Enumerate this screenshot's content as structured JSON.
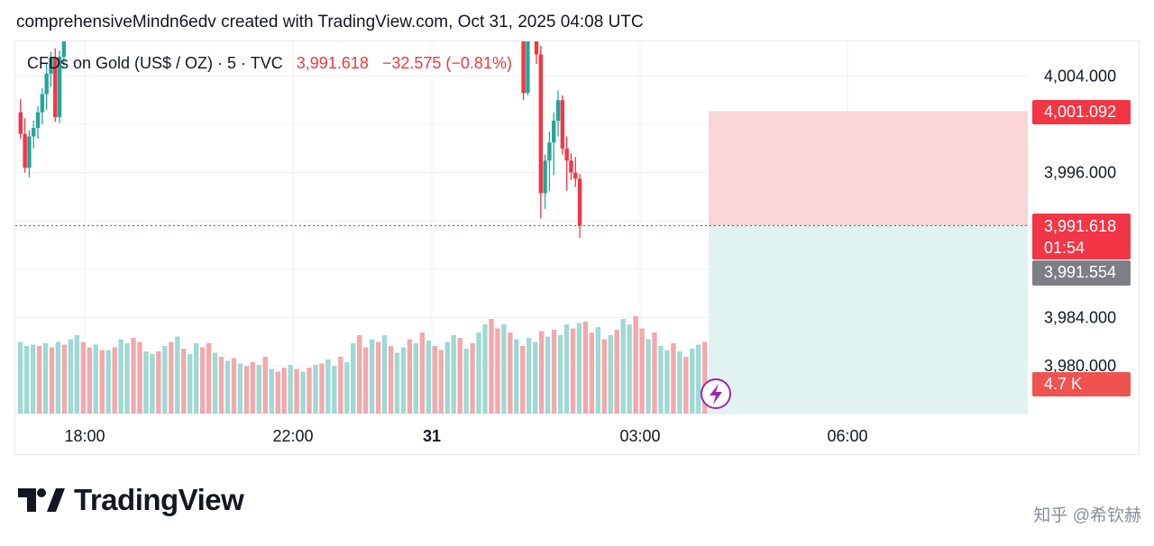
{
  "header": {
    "created_text": "comprehensiveMindn6edv created with TradingView.com, Oct 31, 2025 04:08 UTC"
  },
  "legend": {
    "symbol": "CFDs on Gold (US$ / OZ) · 5 · TVC",
    "last": "3,991.618",
    "change": "−32.575 (−0.81%)"
  },
  "brand": {
    "name": "TradingView",
    "icon": "tradingview-logo-icon"
  },
  "watermark": "知乎 @希钦赫",
  "colors": {
    "up": "#26a69a",
    "down": "#f23645",
    "up_volume": "#9ed9d3",
    "down_volume": "#f2a8ad",
    "stop_zone": "#f9d5d8",
    "target_zone": "#e0f3f1",
    "grid": "#eef0f3",
    "price_line": "#9b3a45"
  },
  "chart_data": {
    "type": "candlestick",
    "title": "CFDs on Gold (US$ / OZ) · 5 · TVC",
    "timeframe": "5",
    "ylim": [
      3976.0,
      4009.0
    ],
    "y_ticks": [
      "4,004.000",
      "3,996.000",
      "3,984.000",
      "3,980.000"
    ],
    "x_ticks": [
      "18:00",
      "22:00",
      "31",
      "03:00",
      "06:00"
    ],
    "price_badges": {
      "stop": "4,001.092",
      "last": "3,991.618",
      "countdown": "01:54",
      "target": "3,991.554",
      "volume": "4.7 K"
    },
    "position": {
      "entry": 3991.618,
      "stop": 4001.092
    },
    "candles": [
      {
        "x": "17:20",
        "o": 4001.0,
        "h": 4002.1,
        "l": 3998.8,
        "c": 3999.2
      },
      {
        "x": "17:25",
        "o": 3999.2,
        "h": 4000.5,
        "l": 3996.0,
        "c": 3996.4
      },
      {
        "x": "17:30",
        "o": 3996.4,
        "h": 3999.5,
        "l": 3995.6,
        "c": 3999.0
      },
      {
        "x": "17:35",
        "o": 3999.0,
        "h": 4000.3,
        "l": 3998.0,
        "c": 3999.7
      },
      {
        "x": "17:40",
        "o": 3999.7,
        "h": 4001.5,
        "l": 3998.8,
        "c": 4001.0
      },
      {
        "x": "17:45",
        "o": 4001.0,
        "h": 4003.0,
        "l": 4000.0,
        "c": 4002.5
      },
      {
        "x": "17:50",
        "o": 4002.5,
        "h": 4005.0,
        "l": 4001.2,
        "c": 4004.2
      },
      {
        "x": "17:55",
        "o": 4004.2,
        "h": 4006.0,
        "l": 4003.1,
        "c": 4005.5
      },
      {
        "x": "18:00",
        "o": 4005.5,
        "h": 4006.3,
        "l": 4000.2,
        "c": 4000.6
      },
      {
        "x": "18:05",
        "o": 4000.6,
        "h": 4006.1,
        "l": 4000.1,
        "c": 4005.6
      },
      {
        "x": "18:10",
        "o": 4005.6,
        "h": 4008.0,
        "l": 4004.8,
        "c": 4007.5
      },
      {
        "x": "03:00",
        "o": 4008.0,
        "h": 4009.0,
        "l": 4002.0,
        "c": 4002.6
      },
      {
        "x": "03:05",
        "o": 4002.6,
        "h": 4009.0,
        "l": 4002.4,
        "c": 4008.8
      },
      {
        "x": "03:15",
        "o": 4008.0,
        "h": 4009.0,
        "l": 4005.0,
        "c": 4005.8
      },
      {
        "x": "03:20",
        "o": 4005.8,
        "h": 4006.5,
        "l": 3992.2,
        "c": 3994.3
      },
      {
        "x": "03:25",
        "o": 3994.3,
        "h": 3997.5,
        "l": 3993.0,
        "c": 3997.0
      },
      {
        "x": "03:30",
        "o": 3997.0,
        "h": 3999.4,
        "l": 3994.5,
        "c": 3998.5
      },
      {
        "x": "03:35",
        "o": 3998.5,
        "h": 4001.0,
        "l": 3995.8,
        "c": 4000.3
      },
      {
        "x": "03:40",
        "o": 4000.3,
        "h": 4002.8,
        "l": 3999.0,
        "c": 4002.0
      },
      {
        "x": "03:45",
        "o": 4002.0,
        "h": 4002.4,
        "l": 3997.5,
        "c": 3998.0
      },
      {
        "x": "03:50",
        "o": 3998.0,
        "h": 3999.0,
        "l": 3994.5,
        "c": 3997.0
      },
      {
        "x": "03:55",
        "o": 3997.0,
        "h": 3997.6,
        "l": 3995.4,
        "c": 3996.0
      },
      {
        "x": "04:00",
        "o": 3996.0,
        "h": 3997.3,
        "l": 3994.8,
        "c": 3995.5
      },
      {
        "x": "04:05",
        "o": 3995.5,
        "h": 3995.9,
        "l": 3990.6,
        "c": 3991.6
      }
    ],
    "volume": [
      0.53,
      0.5,
      0.51,
      0.5,
      0.52,
      0.49,
      0.53,
      0.51,
      0.55,
      0.58,
      0.53,
      0.49,
      0.51,
      0.47,
      0.47,
      0.49,
      0.55,
      0.52,
      0.56,
      0.53,
      0.46,
      0.44,
      0.46,
      0.5,
      0.53,
      0.57,
      0.48,
      0.44,
      0.52,
      0.49,
      0.52,
      0.45,
      0.42,
      0.39,
      0.41,
      0.37,
      0.35,
      0.38,
      0.36,
      0.42,
      0.33,
      0.31,
      0.34,
      0.36,
      0.33,
      0.31,
      0.34,
      0.36,
      0.37,
      0.4,
      0.35,
      0.42,
      0.38,
      0.52,
      0.58,
      0.49,
      0.55,
      0.53,
      0.58,
      0.5,
      0.45,
      0.49,
      0.55,
      0.52,
      0.6,
      0.54,
      0.5,
      0.47,
      0.53,
      0.58,
      0.56,
      0.48,
      0.52,
      0.6,
      0.66,
      0.7,
      0.63,
      0.66,
      0.6,
      0.55,
      0.5,
      0.56,
      0.53,
      0.61,
      0.57,
      0.62,
      0.58,
      0.66,
      0.63,
      0.67,
      0.68,
      0.6,
      0.64,
      0.55,
      0.58,
      0.62,
      0.7,
      0.66,
      0.72,
      0.63,
      0.55,
      0.6,
      0.5,
      0.47,
      0.52,
      0.46,
      0.42,
      0.48,
      0.51,
      0.53
    ],
    "volume_up": [
      1,
      1,
      1,
      0,
      1,
      0,
      1,
      0,
      1,
      1,
      0,
      0,
      1,
      0,
      1,
      0,
      1,
      1,
      0,
      0,
      1,
      1,
      0,
      1,
      0,
      1,
      0,
      1,
      1,
      0,
      0,
      1,
      0,
      1,
      0,
      1,
      0,
      0,
      1,
      0,
      1,
      0,
      0,
      1,
      0,
      1,
      0,
      1,
      0,
      1,
      1,
      0,
      1,
      1,
      0,
      0,
      1,
      0,
      1,
      0,
      1,
      1,
      0,
      1,
      0,
      1,
      0,
      0,
      1,
      1,
      0,
      1,
      0,
      1,
      1,
      0,
      0,
      1,
      0,
      1,
      0,
      1,
      1,
      0,
      1,
      0,
      1,
      1,
      0,
      1,
      0,
      0,
      1,
      0,
      1,
      0,
      1,
      1,
      0,
      0,
      1,
      0,
      1,
      1,
      0,
      1,
      0,
      1,
      1,
      0
    ]
  }
}
